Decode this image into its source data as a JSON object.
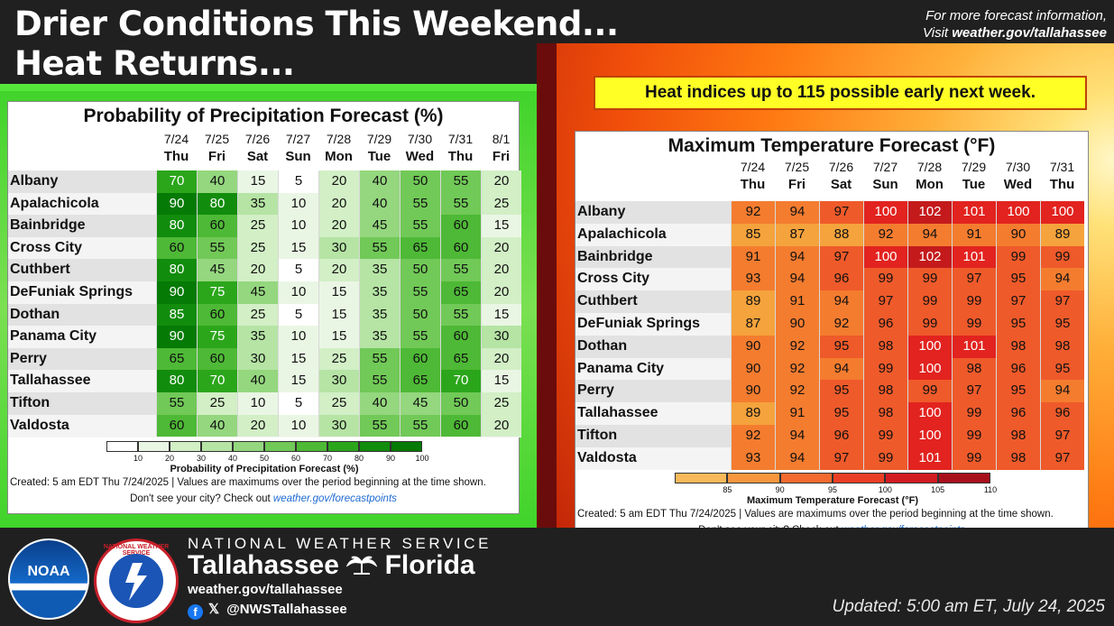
{
  "header": {
    "title_line1": "Drier Conditions This Weekend...",
    "title_line2": "Heat Returns...",
    "info_line1": "For more forecast information,",
    "info_line2_prefix": "Visit ",
    "info_line2_link": "weather.gov/tallahassee"
  },
  "heat_note": "Heat indices up to 115 possible early next week.",
  "chart_data": [
    {
      "type": "table",
      "title": "Probability of Precipitation Forecast (%)",
      "dates": [
        "7/24",
        "7/25",
        "7/26",
        "7/27",
        "7/28",
        "7/29",
        "7/30",
        "7/31",
        "8/1"
      ],
      "days": [
        "Thu",
        "Fri",
        "Sat",
        "Sun",
        "Mon",
        "Tue",
        "Wed",
        "Thu",
        "Fri"
      ],
      "rows": [
        {
          "city": "Albany",
          "values": [
            70,
            40,
            15,
            5,
            20,
            40,
            50,
            55,
            20
          ]
        },
        {
          "city": "Apalachicola",
          "values": [
            90,
            80,
            35,
            10,
            20,
            40,
            55,
            55,
            25
          ]
        },
        {
          "city": "Bainbridge",
          "values": [
            80,
            60,
            25,
            10,
            20,
            45,
            55,
            60,
            15
          ]
        },
        {
          "city": "Cross City",
          "values": [
            60,
            55,
            25,
            15,
            30,
            55,
            65,
            60,
            20
          ]
        },
        {
          "city": "Cuthbert",
          "values": [
            80,
            45,
            20,
            5,
            20,
            35,
            50,
            55,
            20
          ]
        },
        {
          "city": "DeFuniak Springs",
          "values": [
            90,
            75,
            45,
            10,
            15,
            35,
            55,
            65,
            20
          ]
        },
        {
          "city": "Dothan",
          "values": [
            85,
            60,
            25,
            5,
            15,
            35,
            50,
            55,
            15
          ]
        },
        {
          "city": "Panama City",
          "values": [
            90,
            75,
            35,
            10,
            15,
            35,
            55,
            60,
            30
          ]
        },
        {
          "city": "Perry",
          "values": [
            65,
            60,
            30,
            15,
            25,
            55,
            60,
            65,
            20
          ]
        },
        {
          "city": "Tallahassee",
          "values": [
            80,
            70,
            40,
            15,
            30,
            55,
            65,
            70,
            15
          ]
        },
        {
          "city": "Tifton",
          "values": [
            55,
            25,
            10,
            5,
            25,
            40,
            45,
            50,
            25
          ]
        },
        {
          "city": "Valdosta",
          "values": [
            60,
            40,
            20,
            10,
            30,
            55,
            55,
            60,
            20
          ]
        }
      ],
      "colorbar": {
        "ticks": [
          10,
          20,
          30,
          40,
          50,
          60,
          70,
          80,
          90,
          100
        ],
        "colors": [
          "#ffffff",
          "#eaf6e4",
          "#d2efc6",
          "#b5e4a4",
          "#94d77e",
          "#71c957",
          "#4eb936",
          "#2ba61b",
          "#128c0c",
          "#057a05"
        ],
        "title": "Probability of Precipitation Forecast (%)"
      },
      "footnote": "Created: 5 am EDT Thu 7/24/2025  |  Values are maximums over the period beginning at the time shown.",
      "city_note_prefix": "Don't see your city? Check out ",
      "city_note_link": "weather.gov/forecastpoints"
    },
    {
      "type": "table",
      "title": "Maximum Temperature Forecast (°F)",
      "dates": [
        "7/24",
        "7/25",
        "7/26",
        "7/27",
        "7/28",
        "7/29",
        "7/30",
        "7/31"
      ],
      "days": [
        "Thu",
        "Fri",
        "Sat",
        "Sun",
        "Mon",
        "Tue",
        "Wed",
        "Thu"
      ],
      "rows": [
        {
          "city": "Albany",
          "values": [
            92,
            94,
            97,
            100,
            102,
            101,
            100,
            100
          ]
        },
        {
          "city": "Apalachicola",
          "values": [
            85,
            87,
            88,
            92,
            94,
            91,
            90,
            89
          ]
        },
        {
          "city": "Bainbridge",
          "values": [
            91,
            94,
            97,
            100,
            102,
            101,
            99,
            99
          ]
        },
        {
          "city": "Cross City",
          "values": [
            93,
            94,
            96,
            99,
            99,
            97,
            95,
            94
          ]
        },
        {
          "city": "Cuthbert",
          "values": [
            89,
            91,
            94,
            97,
            99,
            99,
            97,
            97
          ]
        },
        {
          "city": "DeFuniak Springs",
          "values": [
            87,
            90,
            92,
            96,
            99,
            99,
            95,
            95
          ]
        },
        {
          "city": "Dothan",
          "values": [
            90,
            92,
            95,
            98,
            100,
            101,
            98,
            98
          ]
        },
        {
          "city": "Panama City",
          "values": [
            90,
            92,
            94,
            99,
            100,
            98,
            96,
            95
          ]
        },
        {
          "city": "Perry",
          "values": [
            90,
            92,
            95,
            98,
            99,
            97,
            95,
            94
          ]
        },
        {
          "city": "Tallahassee",
          "values": [
            89,
            91,
            95,
            98,
            100,
            99,
            96,
            96
          ]
        },
        {
          "city": "Tifton",
          "values": [
            92,
            94,
            96,
            99,
            100,
            99,
            98,
            97
          ]
        },
        {
          "city": "Valdosta",
          "values": [
            93,
            94,
            97,
            99,
            101,
            99,
            98,
            97
          ]
        }
      ],
      "colorbar": {
        "ticks": [
          85,
          90,
          95,
          100,
          105,
          110
        ],
        "colors": [
          "#f9b95a",
          "#f7963e",
          "#f26a2d",
          "#ea3f25",
          "#d11c21",
          "#a80f1c"
        ],
        "title": "Maximum Temperature Forecast (°F)"
      },
      "footnote": "Created: 5 am EDT Thu 7/24/2025  |  Values are maximums over the period beginning at the time shown.",
      "city_note_prefix": "Don't see your city? Check out ",
      "city_note_link": "weather.gov/forecastpoints"
    }
  ],
  "footer": {
    "noaa_logo_text": "NOAA",
    "nws_logo_text": "NATIONAL WEATHER SERVICE",
    "nws_name": "NATIONAL WEATHER SERVICE",
    "office_city": "Tallahassee",
    "office_state": "Florida",
    "web": "weather.gov/tallahassee",
    "x_glyph": "𝕏",
    "social": "@NWSTallahassee",
    "updated": "Updated: 5:00 am ET, July 24, 2025"
  },
  "icons": [
    "noaa-logo-icon",
    "nws-logo-icon",
    "palm-tree-icon",
    "facebook-icon",
    "x-icon"
  ]
}
